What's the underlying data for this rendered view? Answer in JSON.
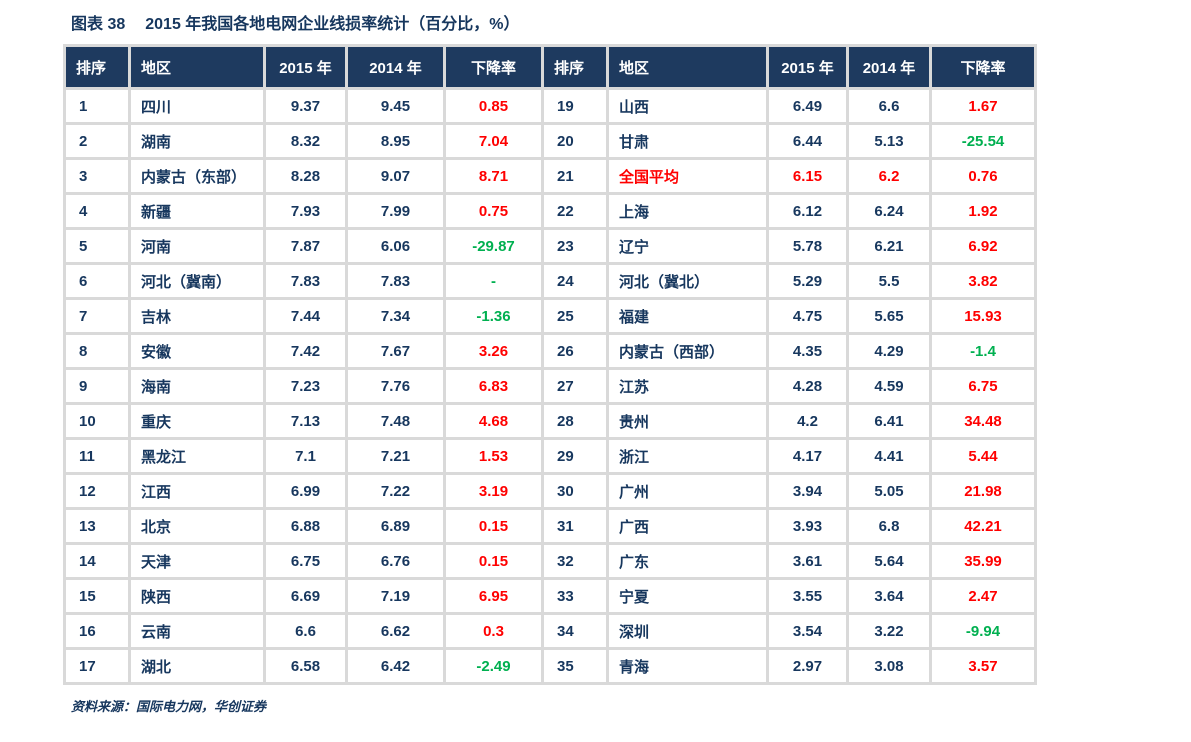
{
  "title": {
    "label": "图表 38",
    "text": "2015 年我国各地电网企业线损率统计（百分比，%）"
  },
  "columns": [
    "排序",
    "地区",
    "2015 年",
    "2014 年",
    "下降率"
  ],
  "left_rows": [
    {
      "rank": "1",
      "region": "四川",
      "y2015": "9.37",
      "y2014": "9.45",
      "change": "0.85",
      "change_color": "red"
    },
    {
      "rank": "2",
      "region": "湖南",
      "y2015": "8.32",
      "y2014": "8.95",
      "change": "7.04",
      "change_color": "red"
    },
    {
      "rank": "3",
      "region": "内蒙古（东部）",
      "y2015": "8.28",
      "y2014": "9.07",
      "change": "8.71",
      "change_color": "red"
    },
    {
      "rank": "4",
      "region": "新疆",
      "y2015": "7.93",
      "y2014": "7.99",
      "change": "0.75",
      "change_color": "red"
    },
    {
      "rank": "5",
      "region": "河南",
      "y2015": "7.87",
      "y2014": "6.06",
      "change": "-29.87",
      "change_color": "green"
    },
    {
      "rank": "6",
      "region": "河北（冀南）",
      "y2015": "7.83",
      "y2014": "7.83",
      "change": "-",
      "change_color": "green"
    },
    {
      "rank": "7",
      "region": "吉林",
      "y2015": "7.44",
      "y2014": "7.34",
      "change": "-1.36",
      "change_color": "green"
    },
    {
      "rank": "8",
      "region": "安徽",
      "y2015": "7.42",
      "y2014": "7.67",
      "change": "3.26",
      "change_color": "red"
    },
    {
      "rank": "9",
      "region": "海南",
      "y2015": "7.23",
      "y2014": "7.76",
      "change": "6.83",
      "change_color": "red"
    },
    {
      "rank": "10",
      "region": "重庆",
      "y2015": "7.13",
      "y2014": "7.48",
      "change": "4.68",
      "change_color": "red"
    },
    {
      "rank": "11",
      "region": "黑龙江",
      "y2015": "7.1",
      "y2014": "7.21",
      "change": "1.53",
      "change_color": "red"
    },
    {
      "rank": "12",
      "region": "江西",
      "y2015": "6.99",
      "y2014": "7.22",
      "change": "3.19",
      "change_color": "red"
    },
    {
      "rank": "13",
      "region": "北京",
      "y2015": "6.88",
      "y2014": "6.89",
      "change": "0.15",
      "change_color": "red"
    },
    {
      "rank": "14",
      "region": "天津",
      "y2015": "6.75",
      "y2014": "6.76",
      "change": "0.15",
      "change_color": "red"
    },
    {
      "rank": "15",
      "region": "陕西",
      "y2015": "6.69",
      "y2014": "7.19",
      "change": "6.95",
      "change_color": "red"
    },
    {
      "rank": "16",
      "region": "云南",
      "y2015": "6.6",
      "y2014": "6.62",
      "change": "0.3",
      "change_color": "red"
    },
    {
      "rank": "17",
      "region": "湖北",
      "y2015": "6.58",
      "y2014": "6.42",
      "change": "-2.49",
      "change_color": "green"
    }
  ],
  "right_rows": [
    {
      "rank": "19",
      "region": "山西",
      "y2015": "6.49",
      "y2014": "6.6",
      "change": "1.67",
      "change_color": "red"
    },
    {
      "rank": "20",
      "region": "甘肃",
      "y2015": "6.44",
      "y2014": "5.13",
      "change": "-25.54",
      "change_color": "green"
    },
    {
      "rank": "21",
      "region": "全国平均",
      "y2015": "6.15",
      "y2014": "6.2",
      "change": "0.76",
      "change_color": "red",
      "highlight": true
    },
    {
      "rank": "22",
      "region": "上海",
      "y2015": "6.12",
      "y2014": "6.24",
      "change": "1.92",
      "change_color": "red"
    },
    {
      "rank": "23",
      "region": "辽宁",
      "y2015": "5.78",
      "y2014": "6.21",
      "change": "6.92",
      "change_color": "red"
    },
    {
      "rank": "24",
      "region": "河北（冀北）",
      "y2015": "5.29",
      "y2014": "5.5",
      "change": "3.82",
      "change_color": "red"
    },
    {
      "rank": "25",
      "region": "福建",
      "y2015": "4.75",
      "y2014": "5.65",
      "change": "15.93",
      "change_color": "red"
    },
    {
      "rank": "26",
      "region": "内蒙古（西部）",
      "y2015": "4.35",
      "y2014": "4.29",
      "change": "-1.4",
      "change_color": "green"
    },
    {
      "rank": "27",
      "region": "江苏",
      "y2015": "4.28",
      "y2014": "4.59",
      "change": "6.75",
      "change_color": "red"
    },
    {
      "rank": "28",
      "region": "贵州",
      "y2015": "4.2",
      "y2014": "6.41",
      "change": "34.48",
      "change_color": "red"
    },
    {
      "rank": "29",
      "region": "浙江",
      "y2015": "4.17",
      "y2014": "4.41",
      "change": "5.44",
      "change_color": "red"
    },
    {
      "rank": "30",
      "region": "广州",
      "y2015": "3.94",
      "y2014": "5.05",
      "change": "21.98",
      "change_color": "red"
    },
    {
      "rank": "31",
      "region": "广西",
      "y2015": "3.93",
      "y2014": "6.8",
      "change": "42.21",
      "change_color": "red"
    },
    {
      "rank": "32",
      "region": "广东",
      "y2015": "3.61",
      "y2014": "5.64",
      "change": "35.99",
      "change_color": "red"
    },
    {
      "rank": "33",
      "region": "宁夏",
      "y2015": "3.55",
      "y2014": "3.64",
      "change": "2.47",
      "change_color": "red"
    },
    {
      "rank": "34",
      "region": "深圳",
      "y2015": "3.54",
      "y2014": "3.22",
      "change": "-9.94",
      "change_color": "green"
    },
    {
      "rank": "35",
      "region": "青海",
      "y2015": "2.97",
      "y2014": "3.08",
      "change": "3.57",
      "change_color": "red"
    }
  ],
  "source": "资料来源：国际电力网，华创证券",
  "colors": {
    "header_bg": "#1E3A5F",
    "text_navy": "#17375E",
    "red": "#FF0000",
    "green": "#00B050",
    "grid": "#D9D9D9",
    "row_bg": "#FFFFFF"
  }
}
